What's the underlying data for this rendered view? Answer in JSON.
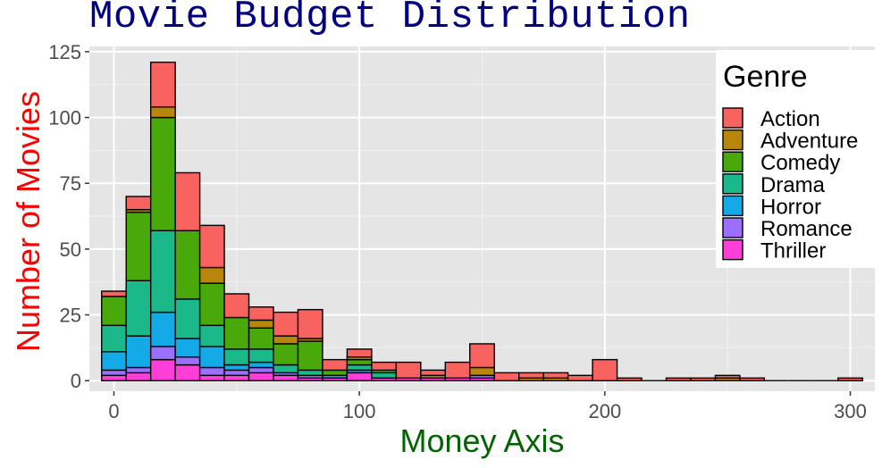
{
  "chart_data": {
    "type": "bar",
    "stacked": true,
    "histogram": true,
    "title": "Movie Budget Distribution",
    "xlabel": "Money Axis",
    "ylabel": "Number of Movies",
    "xlim": [
      -10,
      310
    ],
    "ylim": [
      -4,
      127
    ],
    "xticks": [
      0,
      100,
      200,
      300
    ],
    "yticks": [
      0,
      25,
      50,
      75,
      100,
      125
    ],
    "bin_width": 10,
    "grid": true,
    "legend_position": "top-right",
    "legend_title": "Genre",
    "x": [
      0,
      10,
      20,
      30,
      40,
      50,
      60,
      70,
      80,
      90,
      100,
      110,
      120,
      130,
      140,
      150,
      160,
      170,
      180,
      190,
      200,
      210,
      220,
      230,
      240,
      250,
      260,
      270,
      280,
      290,
      300
    ],
    "series": [
      {
        "name": "Thriller",
        "color": "#FF3FD8",
        "values": [
          2,
          3,
          8,
          6,
          2,
          2,
          3,
          2,
          1,
          1,
          3,
          1,
          1,
          1,
          1,
          1,
          0,
          0,
          0,
          0,
          0,
          0,
          0,
          0,
          0,
          0,
          0,
          0,
          0,
          0,
          0
        ]
      },
      {
        "name": "Romance",
        "color": "#9B6FFF",
        "values": [
          2,
          2,
          5,
          3,
          3,
          2,
          2,
          1,
          1,
          0,
          0,
          0,
          0,
          0,
          0,
          1,
          0,
          0,
          0,
          0,
          0,
          0,
          0,
          0,
          0,
          0,
          0,
          0,
          0,
          0,
          0
        ]
      },
      {
        "name": "Horror",
        "color": "#14AAE8",
        "values": [
          7,
          12,
          13,
          7,
          8,
          2,
          2,
          0,
          0,
          1,
          1,
          0,
          0,
          0,
          0,
          0,
          0,
          0,
          0,
          0,
          0,
          0,
          0,
          0,
          0,
          0,
          0,
          0,
          0,
          0,
          0
        ]
      },
      {
        "name": "Drama",
        "color": "#1BB98A",
        "values": [
          10,
          21,
          31,
          15,
          8,
          6,
          5,
          3,
          2,
          0,
          2,
          2,
          0,
          0,
          0,
          0,
          0,
          0,
          0,
          0,
          0,
          0,
          0,
          0,
          0,
          0,
          0,
          0,
          0,
          0,
          0
        ]
      },
      {
        "name": "Comedy",
        "color": "#4AA90A",
        "values": [
          11,
          26,
          43,
          26,
          16,
          12,
          8,
          8,
          11,
          2,
          2,
          1,
          0,
          0,
          0,
          0,
          0,
          0,
          0,
          0,
          0,
          0,
          0,
          0,
          0,
          0,
          0,
          0,
          0,
          0,
          0
        ]
      },
      {
        "name": "Adventure",
        "color": "#B8860B",
        "values": [
          0,
          1,
          4,
          0,
          6,
          0,
          3,
          3,
          1,
          0,
          1,
          0,
          0,
          1,
          0,
          3,
          0,
          1,
          1,
          0,
          0,
          0,
          0,
          0,
          0,
          1,
          0,
          0,
          0,
          0,
          0
        ]
      },
      {
        "name": "Action",
        "color": "#F8635F",
        "values": [
          2,
          5,
          17,
          22,
          16,
          9,
          5,
          9,
          11,
          4,
          3,
          3,
          6,
          2,
          6,
          9,
          3,
          2,
          2,
          2,
          8,
          1,
          0,
          1,
          1,
          1,
          1,
          0,
          0,
          0,
          1
        ]
      }
    ]
  }
}
